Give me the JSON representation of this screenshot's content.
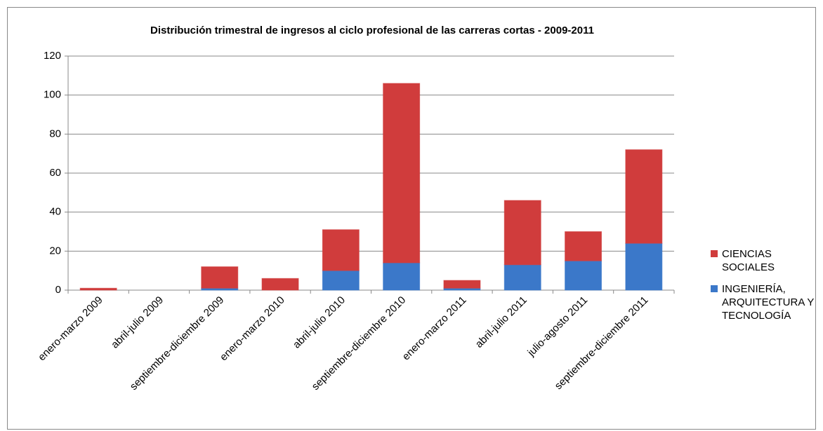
{
  "chart_data": {
    "type": "stacked_bar",
    "title": "Distribución  trimestral de ingresos al ciclo profesional de las carreras cortas - 2009-2011",
    "categories": [
      "enero-marzo 2009",
      "abril-julio 2009",
      "septiembre-diciembre 2009",
      "enero-marzo 2010",
      "abril-julio 2010",
      "septiembre-diciembre 2010",
      "enero-marzo 2011",
      "abril-julio 2011",
      "julio-agosto 2011",
      "septiembre-diciembre 2011"
    ],
    "series": [
      {
        "name": "INGENIERÍA, ARQUITECTURA Y TECNOLOGÍA",
        "color": "#3b78c9",
        "values": [
          0,
          0,
          1,
          0,
          10,
          14,
          1,
          13,
          15,
          24
        ]
      },
      {
        "name": "CIENCIAS SOCIALES",
        "color": "#d03c3c",
        "values": [
          1,
          0,
          11,
          6,
          21,
          92,
          4,
          33,
          15,
          48
        ]
      }
    ],
    "ylim": [
      0,
      120
    ],
    "yticks": [
      0,
      20,
      40,
      60,
      80,
      100,
      120
    ],
    "grid": true,
    "legend": "right"
  }
}
